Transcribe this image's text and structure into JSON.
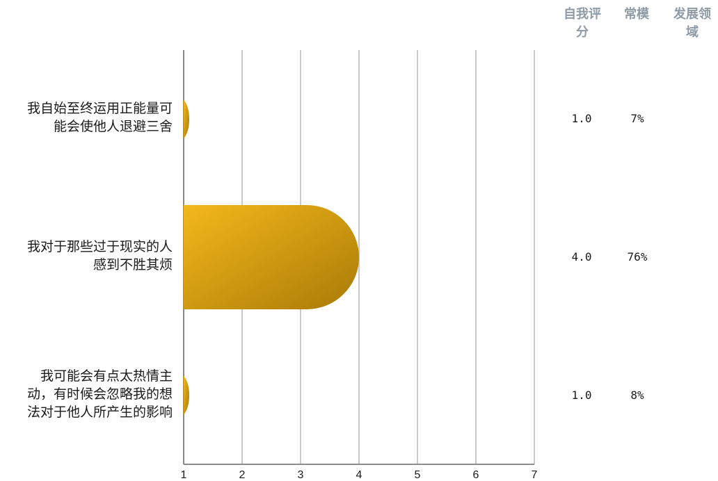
{
  "chart_data": {
    "type": "bar",
    "orientation": "horizontal",
    "categories": [
      "我自始至终运用正能量可能会使他人退避三舍",
      "我对于那些过于现实的人感到不胜其烦",
      "我可能会有点太热情主动，有时候会忽略我的想法对于他人所产生的影响"
    ],
    "category_lines": [
      [
        "我自始至终运用正能量可",
        "能会使他人退避三舍"
      ],
      [
        "我对于那些过于现实的人",
        "感到不胜其烦"
      ],
      [
        "我可能会有点太热情主",
        "动，有时候会忽略我的想",
        "法对于他人所产生的影响"
      ]
    ],
    "values": [
      1.0,
      4.0,
      1.0
    ],
    "xlim": [
      1,
      7
    ],
    "ticks": [
      "1",
      "2",
      "3",
      "4",
      "5",
      "6",
      "7"
    ],
    "grid": true,
    "bar_color": "#e3a21a",
    "table": {
      "headers": [
        "自我评分",
        "常模",
        "发展领域"
      ],
      "self_scores": [
        "1.0",
        "4.0",
        "1.0"
      ],
      "norms": [
        "7%",
        "76%",
        "8%"
      ],
      "development": [
        "",
        "",
        ""
      ]
    }
  }
}
